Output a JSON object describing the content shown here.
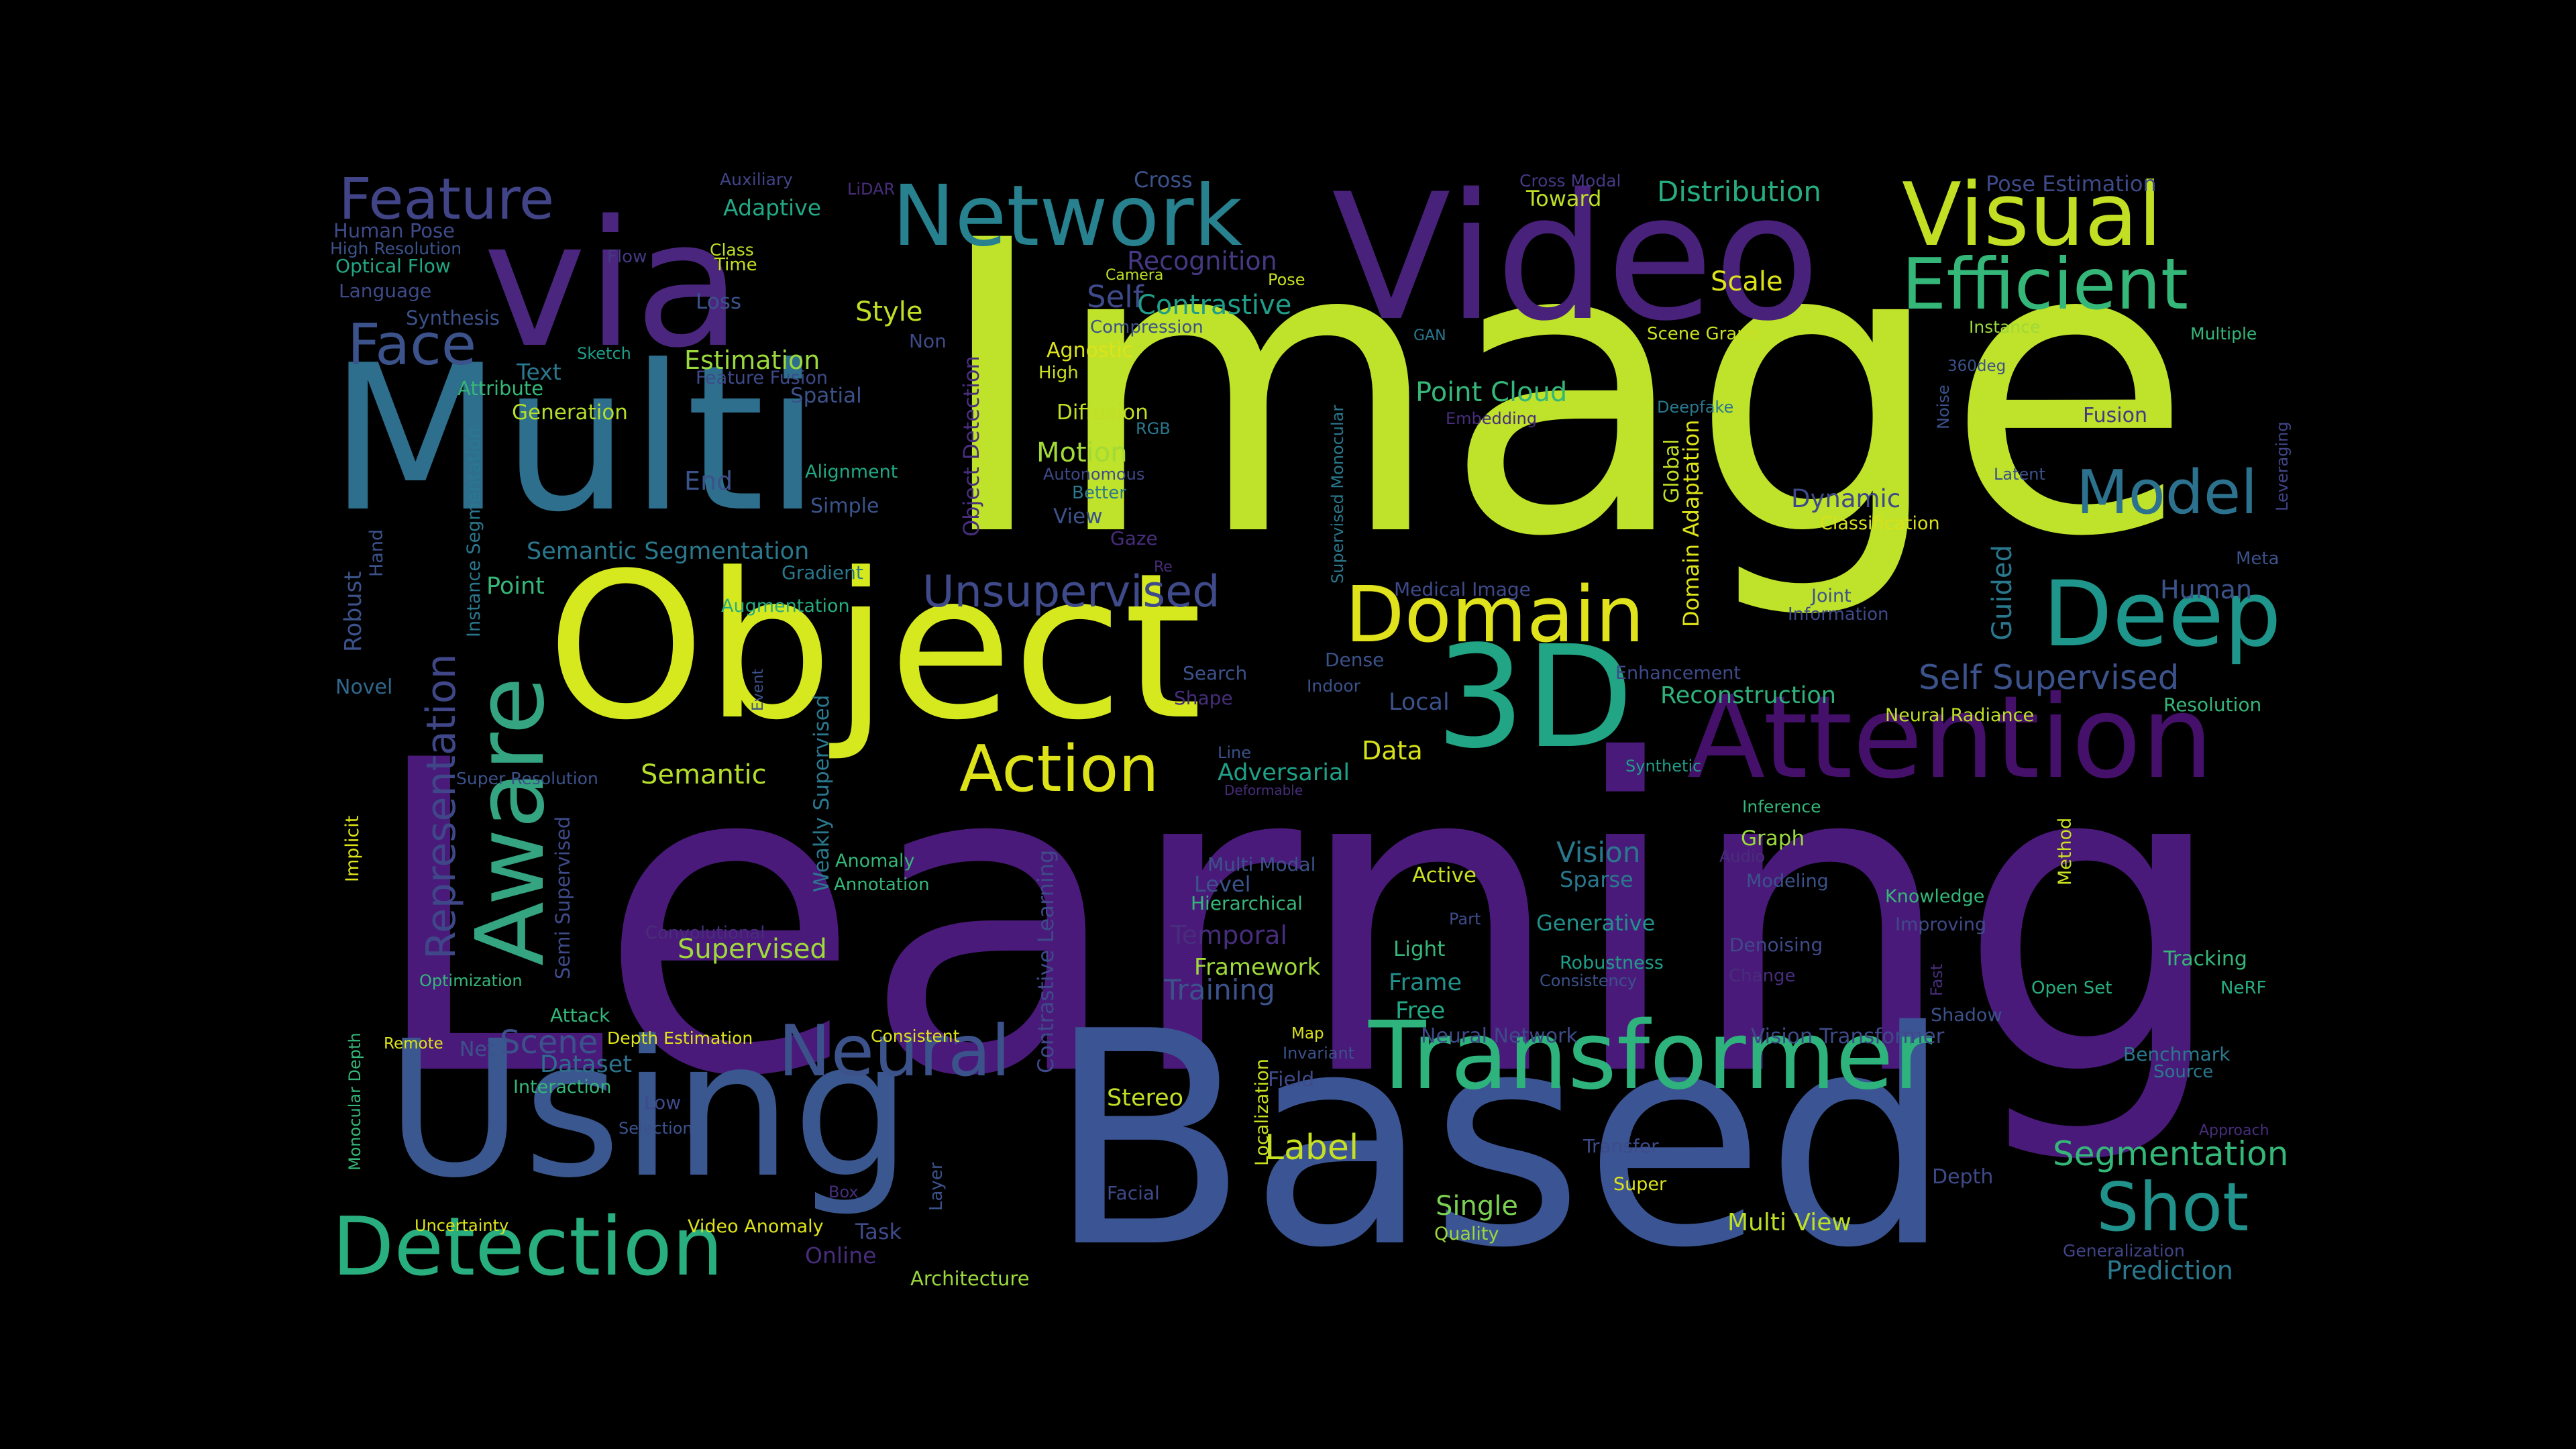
{
  "words": [
    {
      "text": "Learning",
      "color": "#4a1a7a"
    },
    {
      "text": "Image",
      "color": "#bfe22a"
    },
    {
      "text": "Based",
      "color": "#3b5594"
    },
    {
      "text": "Multi",
      "color": "#2e6f8e"
    },
    {
      "text": "Object",
      "color": "#d6e81e"
    },
    {
      "text": "Video",
      "color": "#48217a"
    },
    {
      "text": "via",
      "color": "#4b267e"
    },
    {
      "text": "Using",
      "color": "#3a578f"
    },
    {
      "text": "3D",
      "color": "#21a585"
    },
    {
      "text": "Attention",
      "color": "#45106a"
    },
    {
      "text": "Transformer",
      "color": "#2eb37c"
    },
    {
      "text": "Detection",
      "color": "#29af7f"
    },
    {
      "text": "Network",
      "color": "#27818e"
    },
    {
      "text": "Visual",
      "color": "#c2df23"
    },
    {
      "text": "Aware",
      "color": "#34a481"
    },
    {
      "text": "Deep",
      "color": "#1f968b"
    },
    {
      "text": "Domain",
      "color": "#e0e31c"
    },
    {
      "text": "Efficient",
      "color": "#35b779"
    },
    {
      "text": "Neural",
      "color": "#3b528b"
    },
    {
      "text": "Action",
      "color": "#dde318"
    },
    {
      "text": "Feature",
      "color": "#414487"
    },
    {
      "text": "Shot",
      "color": "#21918c"
    },
    {
      "text": "Model",
      "color": "#2c728e"
    },
    {
      "text": "Face",
      "color": "#3b528b"
    },
    {
      "text": "Unsupervised",
      "color": "#3e4a89"
    },
    {
      "text": "Representation",
      "color": "#3f4788"
    },
    {
      "text": "Self Supervised",
      "color": "#3b528b"
    },
    {
      "text": "Segmentation",
      "color": "#35b779"
    },
    {
      "text": "Label",
      "color": "#c8e020"
    },
    {
      "text": "Semantic Segmentation",
      "color": "#2a788e"
    },
    {
      "text": "Reconstruction",
      "color": "#2eb37c"
    },
    {
      "text": "Training",
      "color": "#3b528b"
    },
    {
      "text": "Scene",
      "color": "#3b528b"
    },
    {
      "text": "Contrastive",
      "color": "#1f9e89"
    },
    {
      "text": "Distribution",
      "color": "#26ad81"
    },
    {
      "text": "Point Cloud",
      "color": "#35b779"
    },
    {
      "text": "Recognition",
      "color": "#443983"
    },
    {
      "text": "Scale",
      "color": "#dde318"
    },
    {
      "text": "Semantic",
      "color": "#b5de2b"
    },
    {
      "text": "Supervised",
      "color": "#9fda3a"
    },
    {
      "text": "Vision",
      "color": "#2a788e"
    },
    {
      "text": "Prediction",
      "color": "#2a788e"
    },
    {
      "text": "Dataset",
      "color": "#2d708e"
    },
    {
      "text": "Style",
      "color": "#c0df25"
    },
    {
      "text": "Self",
      "color": "#3e4a89"
    },
    {
      "text": "Motion",
      "color": "#a2da37"
    },
    {
      "text": "Temporal",
      "color": "#472d7b"
    },
    {
      "text": "Adversarial",
      "color": "#1fa187"
    },
    {
      "text": "Data",
      "color": "#d8e219"
    },
    {
      "text": "Local",
      "color": "#3b528b"
    },
    {
      "text": "Estimation",
      "color": "#9bd93c"
    },
    {
      "text": "Point",
      "color": "#35b779"
    },
    {
      "text": "End",
      "color": "#3b528b"
    },
    {
      "text": "Robust",
      "color": "#3b528b"
    },
    {
      "text": "Single",
      "color": "#7ad151"
    },
    {
      "text": "Generative",
      "color": "#21918c"
    },
    {
      "text": "Dynamic",
      "color": "#3e4a89"
    },
    {
      "text": "Human",
      "color": "#3b528b"
    },
    {
      "text": "Guided",
      "color": "#2a788e"
    },
    {
      "text": "Multi View",
      "color": "#bddf26"
    },
    {
      "text": "Stereo",
      "color": "#c0df25"
    },
    {
      "text": "Framework",
      "color": "#9fda3a"
    },
    {
      "text": "Level",
      "color": "#3b528b"
    },
    {
      "text": "Frame",
      "color": "#21918c"
    },
    {
      "text": "Free",
      "color": "#22a884"
    },
    {
      "text": "Depth",
      "color": "#3e4a89"
    },
    {
      "text": "Task",
      "color": "#3e4a89"
    },
    {
      "text": "Online",
      "color": "#472d7b"
    },
    {
      "text": "Novel",
      "color": "#31688e"
    },
    {
      "text": "Adaptive",
      "color": "#22a884"
    },
    {
      "text": "Toward",
      "color": "#bddf26"
    },
    {
      "text": "Pose Estimation",
      "color": "#3e4a89"
    },
    {
      "text": "Cross",
      "color": "#3b528b"
    },
    {
      "text": "Auxiliary",
      "color": "#414487"
    },
    {
      "text": "LiDAR",
      "color": "#472d7b"
    },
    {
      "text": "Human Pose",
      "color": "#3e4a89"
    },
    {
      "text": "High Resolution",
      "color": "#3b528b"
    },
    {
      "text": "Optical Flow",
      "color": "#22a884"
    },
    {
      "text": "Language",
      "color": "#3e4a89"
    },
    {
      "text": "Flow",
      "color": "#443983"
    },
    {
      "text": "Class",
      "color": "#bddf26"
    },
    {
      "text": "Time",
      "color": "#c8e020"
    },
    {
      "text": "Loss",
      "color": "#3b528b"
    },
    {
      "text": "Synthesis",
      "color": "#3b528b"
    },
    {
      "text": "Sketch",
      "color": "#1f9e89"
    },
    {
      "text": "Non",
      "color": "#3e4a89"
    },
    {
      "text": "Camera",
      "color": "#bddf26"
    },
    {
      "text": "Pose",
      "color": "#c8e020"
    },
    {
      "text": "Compression",
      "color": "#3b528b"
    },
    {
      "text": "Agnostic",
      "color": "#dde318"
    },
    {
      "text": "High",
      "color": "#c8e020"
    },
    {
      "text": "Text",
      "color": "#2a788e"
    },
    {
      "text": "Feature Fusion",
      "color": "#3e4a89"
    },
    {
      "text": "Spatial",
      "color": "#3b528b"
    },
    {
      "text": "Attribute",
      "color": "#35b779"
    },
    {
      "text": "Generation",
      "color": "#b5de2b"
    },
    {
      "text": "Diffusion",
      "color": "#c0df25"
    },
    {
      "text": "RGB",
      "color": "#2a788e"
    },
    {
      "text": "Autonomous",
      "color": "#3e4a89"
    },
    {
      "text": "Better",
      "color": "#2a788e"
    },
    {
      "text": "Alignment",
      "color": "#22a884"
    },
    {
      "text": "Simple",
      "color": "#3b528b"
    },
    {
      "text": "View",
      "color": "#3b528b"
    },
    {
      "text": "Gaze",
      "color": "#472d7b"
    },
    {
      "text": "Gradient",
      "color": "#2a788e"
    },
    {
      "text": "Augmentation",
      "color": "#26ad81"
    },
    {
      "text": "Hand",
      "color": "#3b528b"
    },
    {
      "text": "Instance Segmentation",
      "color": "#2a788e"
    },
    {
      "text": "Object Detection",
      "color": "#472d7b"
    },
    {
      "text": "Cross Modal",
      "color": "#443983"
    },
    {
      "text": "GAN",
      "color": "#2a788e"
    },
    {
      "text": "Scene Graph",
      "color": "#c8e020"
    },
    {
      "text": "Instance",
      "color": "#9bd93c"
    },
    {
      "text": "Multiple",
      "color": "#35b779"
    },
    {
      "text": "360deg",
      "color": "#3b528b"
    },
    {
      "text": "Deepfake",
      "color": "#2a788e"
    },
    {
      "text": "Fusion",
      "color": "#443983"
    },
    {
      "text": "Embedding",
      "color": "#472d7b"
    },
    {
      "text": "Supervised Monocular",
      "color": "#2a788e"
    },
    {
      "text": "Global",
      "color": "#c0df25"
    },
    {
      "text": "Domain Adaptation",
      "color": "#dde318"
    },
    {
      "text": "Noise",
      "color": "#3b528b"
    },
    {
      "text": "Latent",
      "color": "#3b528b"
    },
    {
      "text": "Classification",
      "color": "#d8e219"
    },
    {
      "text": "Leveraging",
      "color": "#414487"
    },
    {
      "text": "Meta",
      "color": "#3b528b"
    },
    {
      "text": "Joint",
      "color": "#3b528b"
    },
    {
      "text": "Information",
      "color": "#3e4a89"
    },
    {
      "text": "Medical Image",
      "color": "#3e4a89"
    },
    {
      "text": "Search",
      "color": "#3b528b"
    },
    {
      "text": "Shape",
      "color": "#472d7b"
    },
    {
      "text": "Dense",
      "color": "#3b528b"
    },
    {
      "text": "Indoor",
      "color": "#3b528b"
    },
    {
      "text": "Enhancement",
      "color": "#3e4a89"
    },
    {
      "text": "Neural Radiance",
      "color": "#bddf26"
    },
    {
      "text": "Resolution",
      "color": "#35b779"
    },
    {
      "text": "Synthetic",
      "color": "#1f9e89"
    },
    {
      "text": "Inference",
      "color": "#35b779"
    },
    {
      "text": "Method",
      "color": "#c8e020"
    },
    {
      "text": "Audio",
      "color": "#472d7b"
    },
    {
      "text": "Graph",
      "color": "#9bd93c"
    },
    {
      "text": "Modeling",
      "color": "#3b528b"
    },
    {
      "text": "Knowledge",
      "color": "#35b779"
    },
    {
      "text": "Improving",
      "color": "#3e4a89"
    },
    {
      "text": "Open Set",
      "color": "#26ad81"
    },
    {
      "text": "NeRF",
      "color": "#26ad81"
    },
    {
      "text": "Tracking",
      "color": "#35b779"
    },
    {
      "text": "Denoising",
      "color": "#3e4a89"
    },
    {
      "text": "Change",
      "color": "#472d7b"
    },
    {
      "text": "Fast",
      "color": "#472d7b"
    },
    {
      "text": "Shadow",
      "color": "#3b528b"
    },
    {
      "text": "Benchmark",
      "color": "#2a788e"
    },
    {
      "text": "Source",
      "color": "#2a788e"
    },
    {
      "text": "Approach",
      "color": "#472d7b"
    },
    {
      "text": "Generalization",
      "color": "#414487"
    },
    {
      "text": "Vision Transformer",
      "color": "#3e4a89"
    },
    {
      "text": "Neural Network",
      "color": "#3e4a89"
    },
    {
      "text": "Robustness",
      "color": "#1f9e89"
    },
    {
      "text": "Consistency",
      "color": "#3b528b"
    },
    {
      "text": "Light",
      "color": "#35b779"
    },
    {
      "text": "Part",
      "color": "#3e4a89"
    },
    {
      "text": "Sparse",
      "color": "#2a788e"
    },
    {
      "text": "Active",
      "color": "#c8e020"
    },
    {
      "text": "Multi Modal",
      "color": "#3b528b"
    },
    {
      "text": "Hierarchical",
      "color": "#35b779"
    },
    {
      "text": "Line",
      "color": "#3b528b"
    },
    {
      "text": "Deformable",
      "color": "#472d7b"
    },
    {
      "text": "Event",
      "color": "#3b528b"
    },
    {
      "text": "Weakly Supervised",
      "color": "#2a788e"
    },
    {
      "text": "Anomaly",
      "color": "#35b779"
    },
    {
      "text": "Annotation",
      "color": "#35b779"
    },
    {
      "text": "Contrastive Learning",
      "color": "#3e4a89"
    },
    {
      "text": "Convolutional",
      "color": "#472d7b"
    },
    {
      "text": "Semi Supervised",
      "color": "#3e4a89"
    },
    {
      "text": "Implicit",
      "color": "#dde318"
    },
    {
      "text": "Super Resolution",
      "color": "#3b528b"
    },
    {
      "text": "Optimization",
      "color": "#35b779"
    },
    {
      "text": "Attack",
      "color": "#35b779"
    },
    {
      "text": "Remote",
      "color": "#dde318"
    },
    {
      "text": "Net",
      "color": "#3b528b"
    },
    {
      "text": "Depth Estimation",
      "color": "#dde318"
    },
    {
      "text": "Consistent",
      "color": "#dde318"
    },
    {
      "text": "Interaction",
      "color": "#35b779"
    },
    {
      "text": "Low",
      "color": "#3e4a89"
    },
    {
      "text": "Selection",
      "color": "#3b528b"
    },
    {
      "text": "Monocular Depth",
      "color": "#35b779"
    },
    {
      "text": "Uncertainty",
      "color": "#dde318"
    },
    {
      "text": "Video Anomaly",
      "color": "#dde318"
    },
    {
      "text": "Box",
      "color": "#472d7b"
    },
    {
      "text": "Layer",
      "color": "#3b528b"
    },
    {
      "text": "Architecture",
      "color": "#9bd93c"
    },
    {
      "text": "Localization",
      "color": "#c8e020"
    },
    {
      "text": "Map",
      "color": "#dde318"
    },
    {
      "text": "Invariant",
      "color": "#3b528b"
    },
    {
      "text": "Field",
      "color": "#3e4a89"
    },
    {
      "text": "Facial",
      "color": "#3e4a89"
    },
    {
      "text": "Transfer",
      "color": "#3e4a89"
    },
    {
      "text": "Super",
      "color": "#dde318"
    },
    {
      "text": "Quality",
      "color": "#9bd93c"
    },
    {
      "text": "Re",
      "color": "#472d7b"
    }
  ]
}
